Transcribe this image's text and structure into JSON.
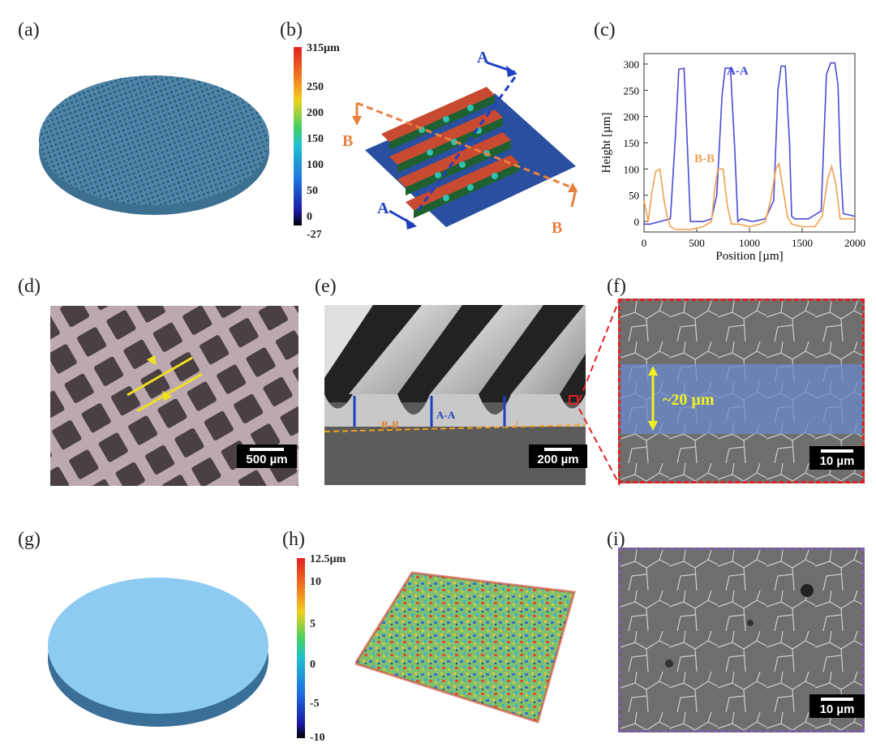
{
  "panels": {
    "a": "(a)",
    "b": "(b)",
    "c": "(c)",
    "d": "(d)",
    "e": "(e)",
    "f": "(f)",
    "g": "(g)",
    "h": "(h)",
    "i": "(i)"
  },
  "colorbar_b": {
    "ticks": [
      "315µm",
      "250",
      "200",
      "150",
      "100",
      "50",
      "0",
      "-27"
    ]
  },
  "section_b": {
    "A": "A",
    "B": "B"
  },
  "chart_data": {
    "type": "line",
    "xlabel": "Position [µm]",
    "ylabel": "Height [µm]",
    "xlim": [
      0,
      2000
    ],
    "ylim": [
      -20,
      320
    ],
    "xticks": [
      "0",
      "500",
      "1000",
      "1500",
      "2000"
    ],
    "yticks": [
      "0",
      "50",
      "100",
      "150",
      "200",
      "250",
      "300"
    ],
    "series": [
      {
        "name": "A-A",
        "color": "#4a4ad6",
        "x": [
          0,
          60,
          150,
          250,
          300,
          330,
          380,
          410,
          440,
          560,
          640,
          690,
          740,
          770,
          820,
          860,
          890,
          920,
          1030,
          1150,
          1230,
          1270,
          1300,
          1340,
          1380,
          1400,
          1430,
          1560,
          1680,
          1730,
          1770,
          1810,
          1840,
          1860,
          1890,
          2000
        ],
        "y": [
          -5,
          -5,
          0,
          5,
          170,
          290,
          292,
          150,
          0,
          0,
          5,
          50,
          240,
          292,
          292,
          140,
          0,
          5,
          0,
          5,
          40,
          250,
          296,
          296,
          150,
          10,
          5,
          5,
          20,
          280,
          302,
          302,
          260,
          120,
          15,
          10
        ]
      },
      {
        "name": "B-B",
        "color": "#f0a050",
        "x": [
          0,
          40,
          70,
          110,
          150,
          190,
          220,
          250,
          300,
          450,
          560,
          640,
          670,
          700,
          750,
          790,
          830,
          900,
          1000,
          1100,
          1150,
          1200,
          1250,
          1280,
          1320,
          1360,
          1400,
          1500,
          1620,
          1690,
          1740,
          1780,
          1820,
          1860,
          1900,
          2000
        ],
        "y": [
          40,
          0,
          50,
          95,
          100,
          40,
          10,
          -10,
          -15,
          -15,
          -10,
          0,
          60,
          100,
          100,
          30,
          -5,
          -5,
          -10,
          -5,
          0,
          40,
          100,
          110,
          60,
          10,
          -5,
          -10,
          -10,
          10,
          80,
          105,
          70,
          5,
          5,
          5
        ]
      }
    ],
    "annotations": [
      "A-A",
      "B-B"
    ]
  },
  "scalebars": {
    "d": "500 µm",
    "e": "200 µm",
    "f": "10 µm",
    "i": "10 µm"
  },
  "sem_e_labels": {
    "bb": "B-B",
    "aa": "A-A",
    "slash": "/"
  },
  "sem_f_label": "~20 µm",
  "colorbar_h": {
    "ticks": [
      "12.5µm",
      "10",
      "5",
      "0",
      "-5",
      "-10"
    ]
  }
}
